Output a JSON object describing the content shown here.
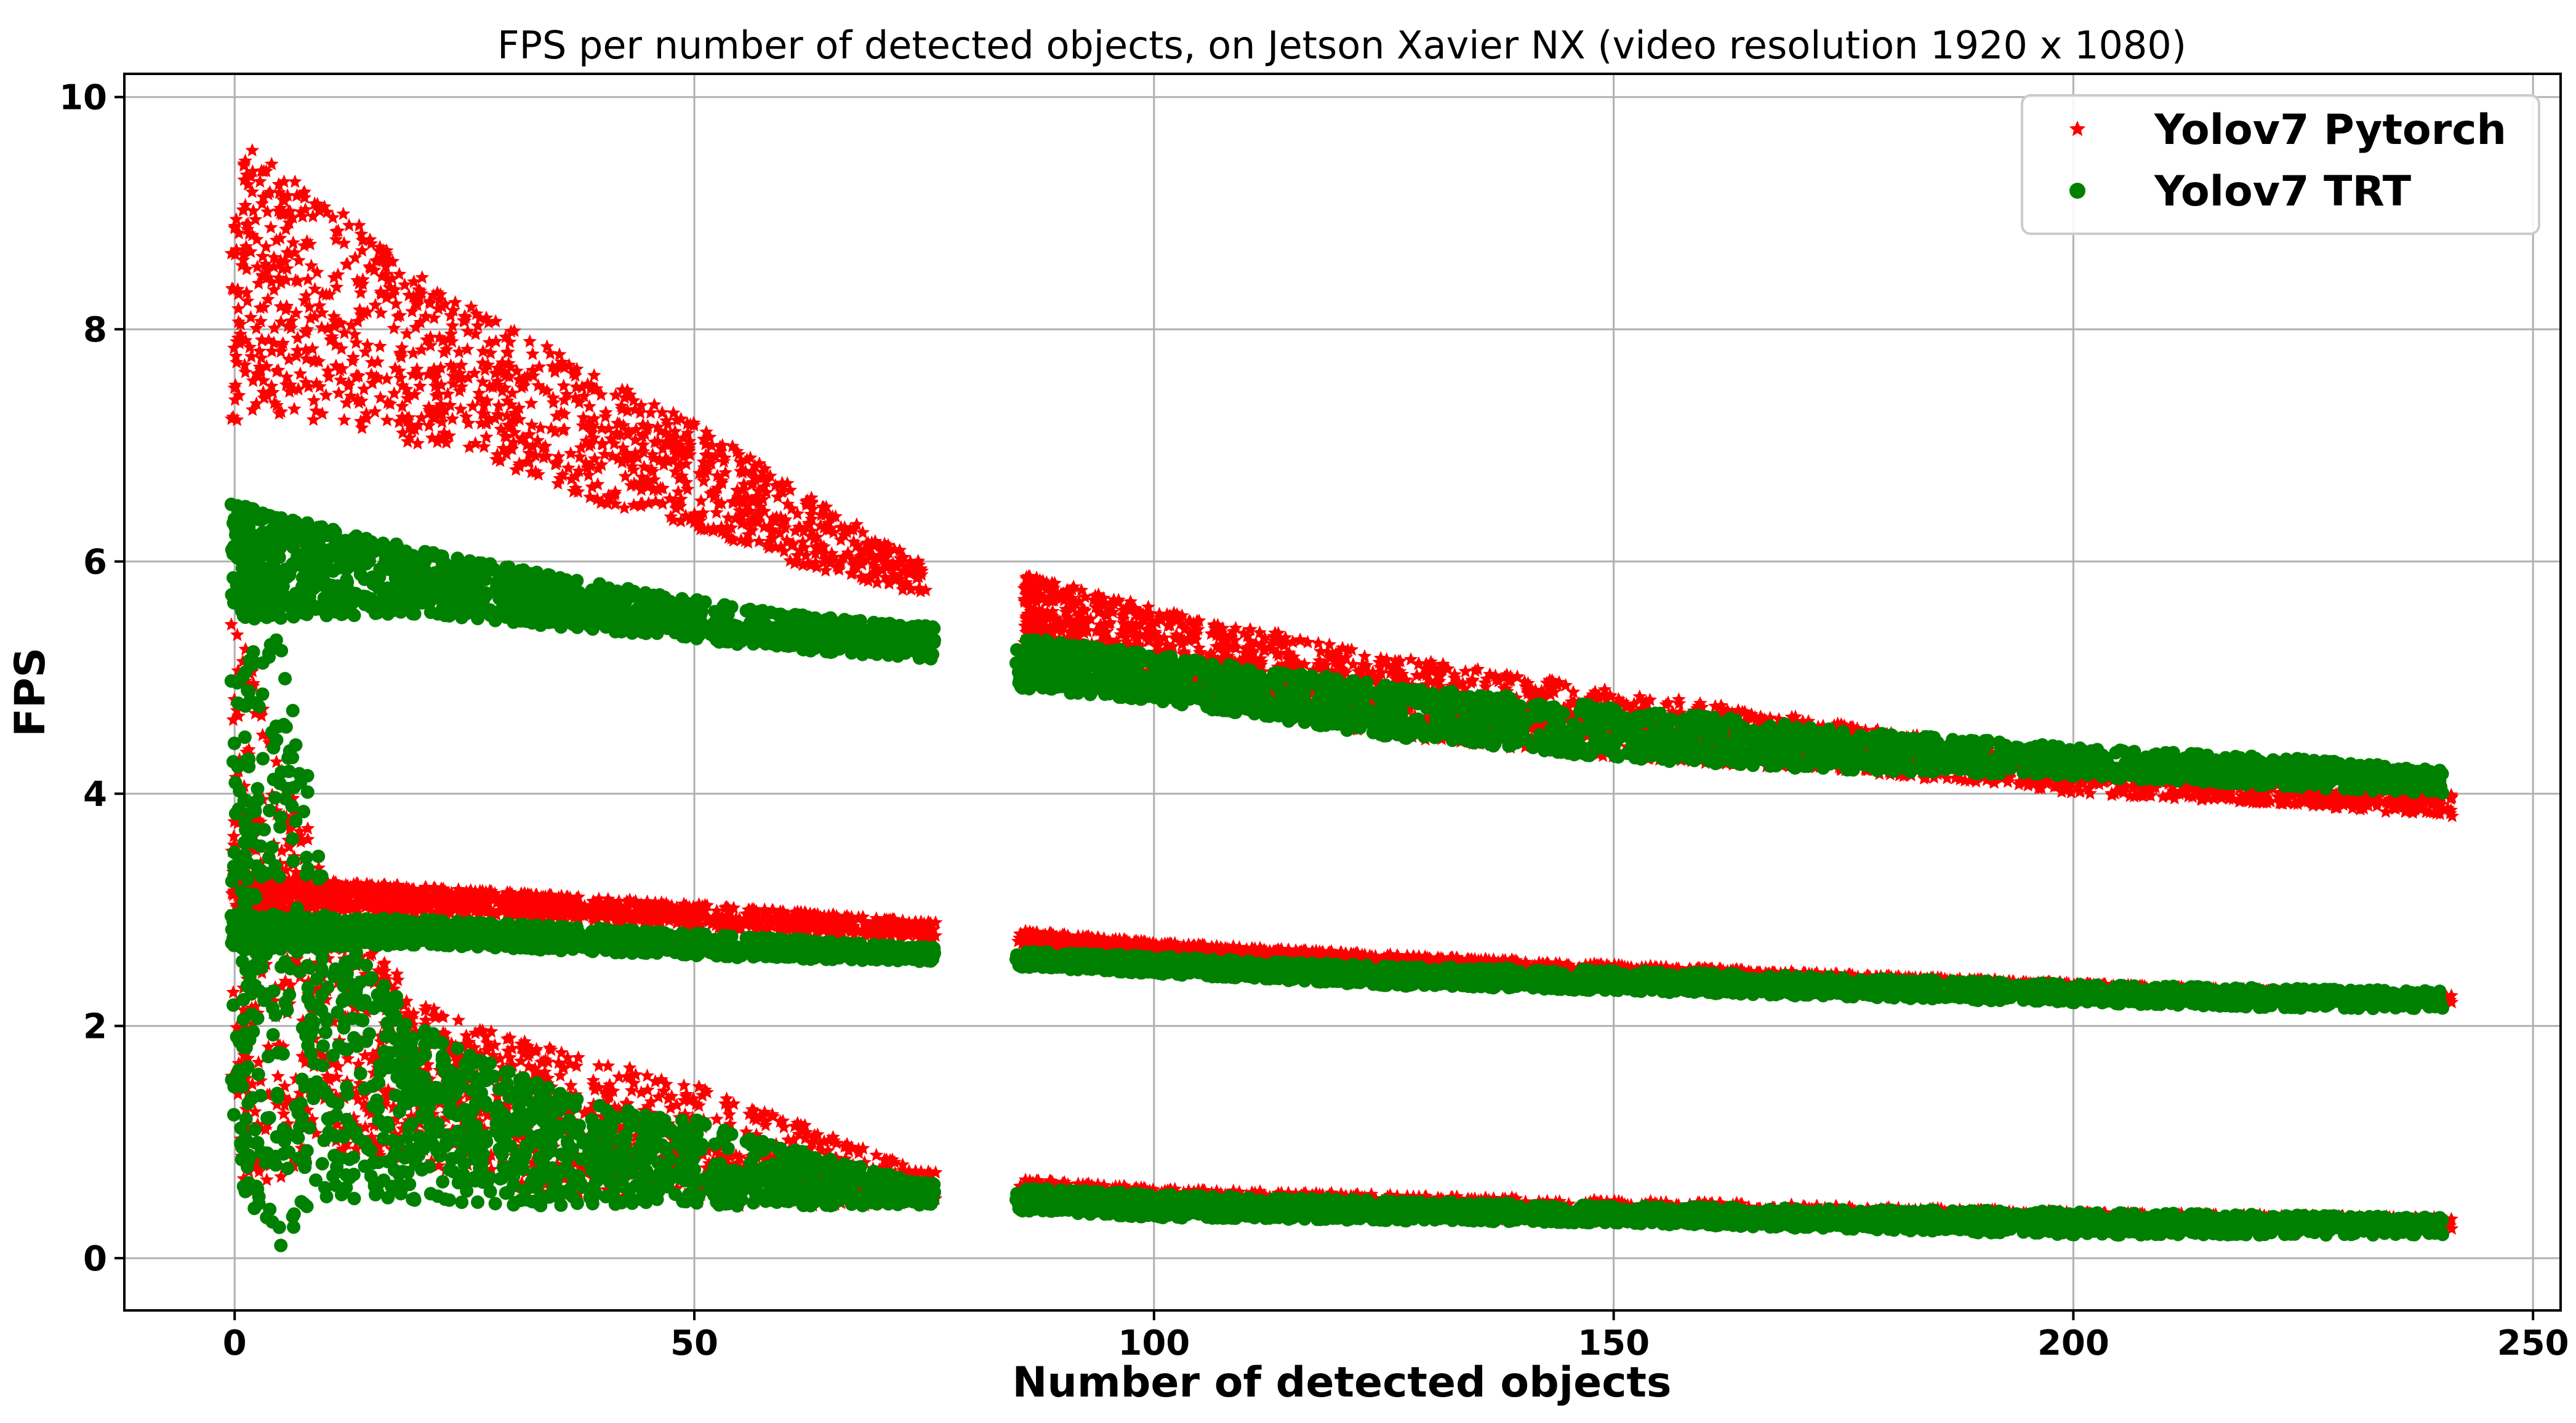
{
  "chart_data": {
    "type": "scatter",
    "title": "FPS per number of detected objects, on Jetson Xavier NX (video resolution 1920 x 1080)",
    "xlabel": "Number of detected objects",
    "ylabel": "FPS",
    "xlim": [
      -12,
      253
    ],
    "ylim": [
      -0.45,
      10.2
    ],
    "xticks": [
      0,
      50,
      100,
      150,
      200,
      250
    ],
    "yticks": [
      0,
      2,
      4,
      6,
      8,
      10
    ],
    "grid": true,
    "legend_position": "top-right",
    "series": [
      {
        "name": "Yolov7 Pytorch",
        "marker": "star",
        "color": "#ff0000",
        "bands": [
          {
            "x": [
              0,
              2,
              10,
              20,
              30,
              40,
              50,
              60,
              70,
              75
            ],
            "y_low": [
              7.2,
              7.3,
              7.2,
              7.0,
              6.8,
              6.5,
              6.3,
              6.0,
              5.8,
              5.7
            ],
            "y_high": [
              9.4,
              9.6,
              9.1,
              8.5,
              8.0,
              7.6,
              7.2,
              6.7,
              6.2,
              6.0
            ]
          },
          {
            "x": [
              86,
              100,
              125,
              150,
              175,
              200,
              225,
              241
            ],
            "y_low": [
              5.2,
              4.9,
              4.5,
              4.3,
              4.2,
              4.0,
              3.9,
              3.8
            ],
            "y_high": [
              5.9,
              5.6,
              5.2,
              4.9,
              4.6,
              4.3,
              4.1,
              4.0
            ]
          },
          {
            "x": [
              0,
              10,
              30,
              50,
              75,
              100,
              125,
              150,
              175,
              200,
              225,
              241
            ],
            "y_low": [
              2.9,
              3.0,
              2.95,
              2.85,
              2.75,
              2.62,
              2.5,
              2.43,
              2.37,
              2.3,
              2.25,
              2.2
            ],
            "y_high": [
              3.3,
              3.25,
              3.15,
              3.05,
              2.9,
              2.72,
              2.62,
              2.53,
              2.45,
              2.37,
              2.3,
              2.27
            ]
          },
          {
            "x": [
              0,
              10,
              20,
              30,
              40,
              50,
              60,
              70,
              75,
              100,
              150,
              200,
              241
            ],
            "y_low": [
              0.5,
              0.9,
              0.8,
              0.6,
              0.5,
              0.45,
              0.45,
              0.45,
              0.45,
              0.4,
              0.3,
              0.25,
              0.25
            ],
            "y_high": [
              5.5,
              3.2,
              2.2,
              1.9,
              1.7,
              1.5,
              1.2,
              0.9,
              0.75,
              0.6,
              0.5,
              0.4,
              0.35
            ]
          }
        ]
      },
      {
        "name": "Yolov7 TRT",
        "marker": "circle",
        "color": "#008000",
        "bands": [
          {
            "x": [
              0,
              20,
              40,
              60,
              75,
              86,
              100,
              125,
              150,
              175,
              200,
              225,
              240
            ],
            "y_low": [
              5.5,
              5.55,
              5.4,
              5.25,
              5.15,
              4.9,
              4.8,
              4.5,
              4.3,
              4.2,
              4.15,
              4.05,
              4.0
            ],
            "y_high": [
              6.5,
              6.1,
              5.8,
              5.55,
              5.45,
              5.35,
              5.2,
              4.95,
              4.75,
              4.55,
              4.4,
              4.3,
              4.2
            ]
          },
          {
            "x": [
              0,
              20,
              50,
              75,
              100,
              125,
              150,
              175,
              200,
              225,
              240
            ],
            "y_low": [
              2.65,
              2.7,
              2.6,
              2.55,
              2.45,
              2.35,
              2.3,
              2.25,
              2.2,
              2.15,
              2.15
            ],
            "y_high": [
              2.95,
              2.92,
              2.8,
              2.68,
              2.6,
              2.52,
              2.48,
              2.42,
              2.36,
              2.32,
              2.3
            ]
          },
          {
            "x": [
              0,
              5,
              10,
              20,
              30,
              40,
              50,
              60,
              70,
              75,
              100,
              150,
              200,
              240
            ],
            "y_low": [
              0.6,
              0.1,
              0.5,
              0.5,
              0.45,
              0.45,
              0.45,
              0.45,
              0.45,
              0.45,
              0.35,
              0.3,
              0.2,
              0.2
            ],
            "y_high": [
              5.0,
              5.5,
              3.0,
              2.0,
              1.6,
              1.3,
              1.2,
              0.95,
              0.75,
              0.65,
              0.55,
              0.45,
              0.4,
              0.35
            ]
          }
        ]
      }
    ]
  }
}
